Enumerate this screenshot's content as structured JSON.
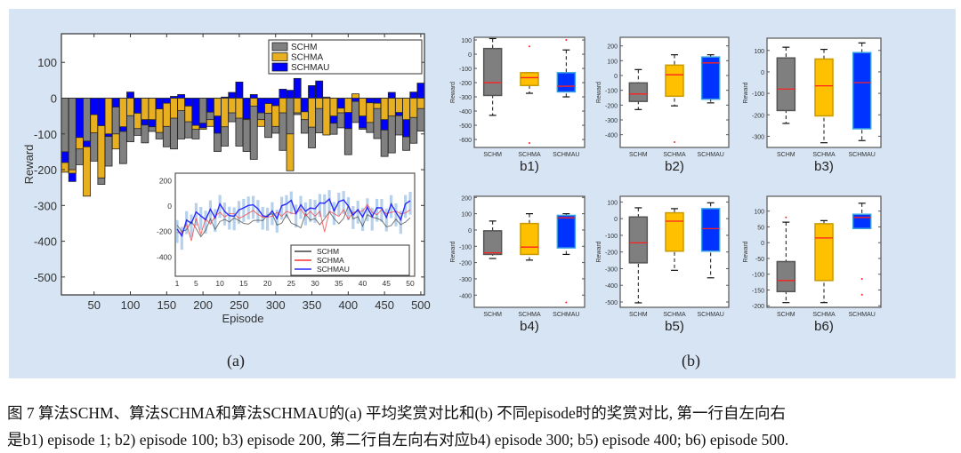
{
  "figure": {
    "label_a": "(a)",
    "label_b": "(b)",
    "caption_line1": "图 7   算法SCHM、算法SCHMA和算法SCHMAU的(a) 平均奖赏对比和(b) 不同episode时的奖赏对比, 第一行自左向右",
    "caption_line2": "是b1) episode 1; b2) episode 100; b3) episode 200, 第二行自左向右对应b4) episode 300; b5) episode 400; b6) episode 500."
  },
  "chart_data": [
    {
      "type": "bar",
      "xlabel": "Episode",
      "ylabel": "Reward",
      "xlim": [
        5,
        505
      ],
      "ylim": [
        -550,
        180
      ],
      "xticks": [
        50,
        100,
        150,
        200,
        250,
        300,
        350,
        400,
        450,
        500
      ],
      "yticks": [
        100,
        0,
        -100,
        -200,
        -300,
        -400,
        -500
      ],
      "legend": "top-right",
      "x": [
        10,
        20,
        30,
        40,
        50,
        60,
        70,
        80,
        90,
        100,
        110,
        120,
        130,
        140,
        150,
        160,
        170,
        180,
        190,
        200,
        210,
        220,
        230,
        240,
        250,
        260,
        270,
        280,
        290,
        300,
        310,
        320,
        330,
        340,
        350,
        360,
        370,
        380,
        390,
        400,
        410,
        420,
        430,
        440,
        450,
        460,
        470,
        480,
        490,
        500
      ],
      "series": [
        {
          "name": "SCHM",
          "color": "#808080",
          "values": [
            -150,
            -200,
            -186,
            -120,
            -176,
            -241,
            -190,
            -100,
            -183,
            -122,
            -104,
            -125,
            -93,
            -114,
            -136,
            -142,
            -114,
            -111,
            -114,
            -70,
            -60,
            -149,
            -134,
            -66,
            -134,
            -149,
            -171,
            -60,
            -110,
            -98,
            -146,
            -100,
            -46,
            -98,
            -139,
            -97,
            3,
            -101,
            -83,
            -158,
            -68,
            -87,
            -96,
            -113,
            -163,
            -153,
            -103,
            -146,
            -126,
            -92
          ]
        },
        {
          "name": "SCHMA",
          "color": "#e8b020",
          "values": [
            -207,
            -210,
            -142,
            -274,
            -97,
            -223,
            -100,
            -142,
            -80,
            -49,
            -85,
            -60,
            -60,
            -96,
            -79,
            -56,
            -35,
            -66,
            -87,
            -87,
            -79,
            -50,
            -80,
            -41,
            -56,
            -60,
            -22,
            -79,
            -42,
            -79,
            -41,
            -203,
            -41,
            -60,
            -81,
            -29,
            -103,
            -50,
            -41,
            -40,
            12,
            -50,
            -68,
            -29,
            -60,
            -50,
            -40,
            -60,
            -54,
            -29
          ]
        },
        {
          "name": "SCHMAU",
          "color": "#0000ff",
          "values": [
            -180,
            -233,
            -110,
            -136,
            -46,
            -77,
            -107,
            -25,
            -93,
            17,
            -42,
            -75,
            -80,
            -30,
            -14,
            5,
            10,
            -22,
            -76,
            -83,
            -39,
            -98,
            3,
            16,
            45,
            -58,
            10,
            -41,
            -15,
            -21,
            25,
            22,
            55,
            -38,
            35,
            48,
            0,
            -70,
            -28,
            -85,
            -9,
            -83,
            -13,
            -14,
            -89,
            16,
            -49,
            -108,
            17,
            42
          ]
        }
      ],
      "inset": {
        "type": "line",
        "xticks": [
          1,
          5,
          10,
          15,
          20,
          25,
          30,
          35,
          40,
          45,
          50
        ],
        "yticks": [
          200,
          0,
          -200,
          -400
        ],
        "ylim": [
          -550,
          250
        ],
        "legend": [
          "SCHM",
          "SCHMA",
          "SCHMAU"
        ],
        "line_colors": [
          "#404040",
          "#ff3030",
          "#2a2aff"
        ]
      }
    },
    {
      "type": "box",
      "categories": [
        "SCHM",
        "SCHMA",
        "SCHMAU"
      ],
      "colors": [
        "#7f7f7f",
        "#ffc000",
        "#0033ff"
      ],
      "ylabel": "Reward",
      "panels": [
        {
          "label": "b1)",
          "ylim": [
            -656,
            119
          ],
          "yticks": [
            100,
            0,
            -100,
            -200,
            -300,
            -400,
            -500,
            -600
          ],
          "boxes": [
            {
              "min": -430,
              "q1": -290,
              "median": -200,
              "q3": 40,
              "max": 110,
              "outliers": []
            },
            {
              "min": -275,
              "q1": -220,
              "median": -165,
              "q3": -130,
              "max": -130,
              "outliers": [
                55,
                -625
              ]
            },
            {
              "min": -300,
              "q1": -265,
              "median": -225,
              "q3": -130,
              "max": 30,
              "outliers": [
                100
              ]
            }
          ]
        },
        {
          "label": "b2)",
          "ylim": [
            -486,
            258
          ],
          "yticks": [
            200,
            100,
            0,
            -100,
            -200,
            -300,
            -400
          ],
          "boxes": [
            {
              "min": -230,
              "q1": -175,
              "median": -125,
              "q3": -50,
              "max": 40,
              "outliers": []
            },
            {
              "min": -205,
              "q1": -140,
              "median": 5,
              "q3": 70,
              "max": 140,
              "outliers": [
                -450
              ]
            },
            {
              "min": -185,
              "q1": -160,
              "median": 85,
              "q3": 125,
              "max": 140,
              "outliers": []
            }
          ]
        },
        {
          "label": "b3)",
          "ylim": [
            -352,
            157
          ],
          "yticks": [
            100,
            0,
            -100,
            -200,
            -300
          ],
          "boxes": [
            {
              "min": -240,
              "q1": -180,
              "median": -80,
              "q3": 65,
              "max": 115,
              "outliers": []
            },
            {
              "min": -330,
              "q1": -205,
              "median": -65,
              "q3": 60,
              "max": 105,
              "outliers": []
            },
            {
              "min": -320,
              "q1": -265,
              "median": -50,
              "q3": 90,
              "max": 135,
              "outliers": []
            }
          ]
        },
        {
          "label": "b4)",
          "ylim": [
            -475,
            207
          ],
          "yticks": [
            200,
            100,
            0,
            -100,
            -200,
            -300,
            -400
          ],
          "boxes": [
            {
              "min": -175,
              "q1": -150,
              "median": -140,
              "q3": -5,
              "max": 55,
              "outliers": []
            },
            {
              "min": -185,
              "q1": -150,
              "median": -105,
              "q3": 40,
              "max": 100,
              "outliers": []
            },
            {
              "min": -150,
              "q1": -110,
              "median": 75,
              "q3": 90,
              "max": 100,
              "outliers": [
                -445
              ]
            }
          ]
        },
        {
          "label": "b5)",
          "ylim": [
            -532,
            134
          ],
          "yticks": [
            100,
            0,
            -100,
            -200,
            -300,
            -400,
            -500
          ],
          "boxes": [
            {
              "min": -505,
              "q1": -265,
              "median": -145,
              "q3": 10,
              "max": 65,
              "outliers": []
            },
            {
              "min": -310,
              "q1": -195,
              "median": -15,
              "q3": 35,
              "max": 60,
              "outliers": []
            },
            {
              "min": -355,
              "q1": -195,
              "median": -60,
              "q3": 60,
              "max": 95,
              "outliers": []
            }
          ]
        },
        {
          "label": "b6)",
          "ylim": [
            -205,
            147
          ],
          "yticks": [
            100,
            50,
            0,
            -50,
            -100,
            -150,
            -200
          ],
          "boxes": [
            {
              "min": -190,
              "q1": -155,
              "median": -120,
              "q3": -60,
              "max": 65,
              "outliers": [
                80
              ]
            },
            {
              "min": -190,
              "q1": -120,
              "median": 15,
              "q3": 60,
              "max": 70,
              "outliers": []
            },
            {
              "min": 45,
              "q1": 45,
              "median": 80,
              "q3": 90,
              "max": 125,
              "outliers": [
                -115,
                -165
              ]
            }
          ]
        }
      ]
    }
  ]
}
